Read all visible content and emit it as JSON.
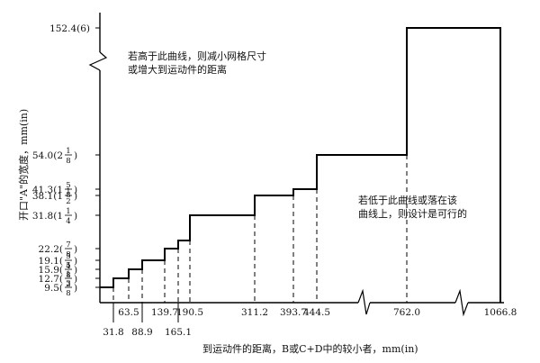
{
  "chart_data": {
    "type": "line",
    "title": "",
    "xlabel": "到运动件的距离，B或C+D中的较小者，mm(in)",
    "ylabel": "开口\"A\"的宽度，mm(in)",
    "x_ticks": [
      {
        "value": 31.8,
        "label": "31.8",
        "row": 2
      },
      {
        "value": 63.5,
        "label": "63.5",
        "row": 1
      },
      {
        "value": 88.9,
        "label": "88.9",
        "row": 2
      },
      {
        "value": 139.7,
        "label": "139.7",
        "row": 1
      },
      {
        "value": 165.1,
        "label": "165.1",
        "row": 2
      },
      {
        "value": 190.5,
        "label": "190.5",
        "row": 1
      },
      {
        "value": 311.2,
        "label": "311.2",
        "row": 1
      },
      {
        "value": 393.7,
        "label": "393.7",
        "row": 1
      },
      {
        "value": 444.5,
        "label": "444.5",
        "row": 1
      },
      {
        "value": 762.0,
        "label": "762.0",
        "row": 1
      },
      {
        "value": 1066.8,
        "label": "1066.8",
        "row": 1
      }
    ],
    "y_ticks": [
      {
        "value": 9.5,
        "mm": "9.5",
        "whole": "",
        "num": "3",
        "den": "8"
      },
      {
        "value": 12.7,
        "mm": "12.7",
        "whole": "",
        "num": "1",
        "den": "2"
      },
      {
        "value": 15.9,
        "mm": "15.9",
        "whole": "",
        "num": "5",
        "den": "8"
      },
      {
        "value": 19.1,
        "mm": "19.1",
        "whole": "",
        "num": "3",
        "den": "4"
      },
      {
        "value": 22.2,
        "mm": "22.2",
        "whole": "",
        "num": "7",
        "den": "8"
      },
      {
        "value": 31.8,
        "mm": "31.8",
        "whole": "1",
        "num": "1",
        "den": "4"
      },
      {
        "value": 38.1,
        "mm": "38.1",
        "whole": "1",
        "num": "1",
        "den": "2"
      },
      {
        "value": 41.3,
        "mm": "41.3",
        "whole": "1",
        "num": "5",
        "den": "8"
      },
      {
        "value": 54.0,
        "mm": "54.0",
        "whole": "2",
        "num": "1",
        "den": "8"
      },
      {
        "value": 152.4,
        "mm": "152.4(6)",
        "whole": "",
        "num": "",
        "den": ""
      }
    ],
    "series": [
      {
        "points": [
          {
            "x": 0,
            "y": 9.5
          },
          {
            "x": 31.8,
            "y": 12.7
          },
          {
            "x": 63.5,
            "y": 15.9
          },
          {
            "x": 88.9,
            "y": 19.1
          },
          {
            "x": 139.7,
            "y": 22.2
          },
          {
            "x": 165.1,
            "y": 25.4
          },
          {
            "x": 190.5,
            "y": 31.8
          },
          {
            "x": 311.2,
            "y": 38.1
          },
          {
            "x": 393.7,
            "y": 41.3
          },
          {
            "x": 444.5,
            "y": 54.0
          },
          {
            "x": 762.0,
            "y": 152.4
          },
          {
            "x": 1066.8,
            "y": null
          }
        ]
      }
    ],
    "annotations": [
      {
        "lines": [
          "若高于此曲线，则减小网格尺寸",
          "或增大到运动件的距离"
        ]
      },
      {
        "lines": [
          "若低于此曲线或落在该",
          "曲线上，则设计是可行的"
        ]
      }
    ],
    "axis_breaks": {
      "x": true,
      "y": true
    },
    "grid": false,
    "legend": "none"
  }
}
